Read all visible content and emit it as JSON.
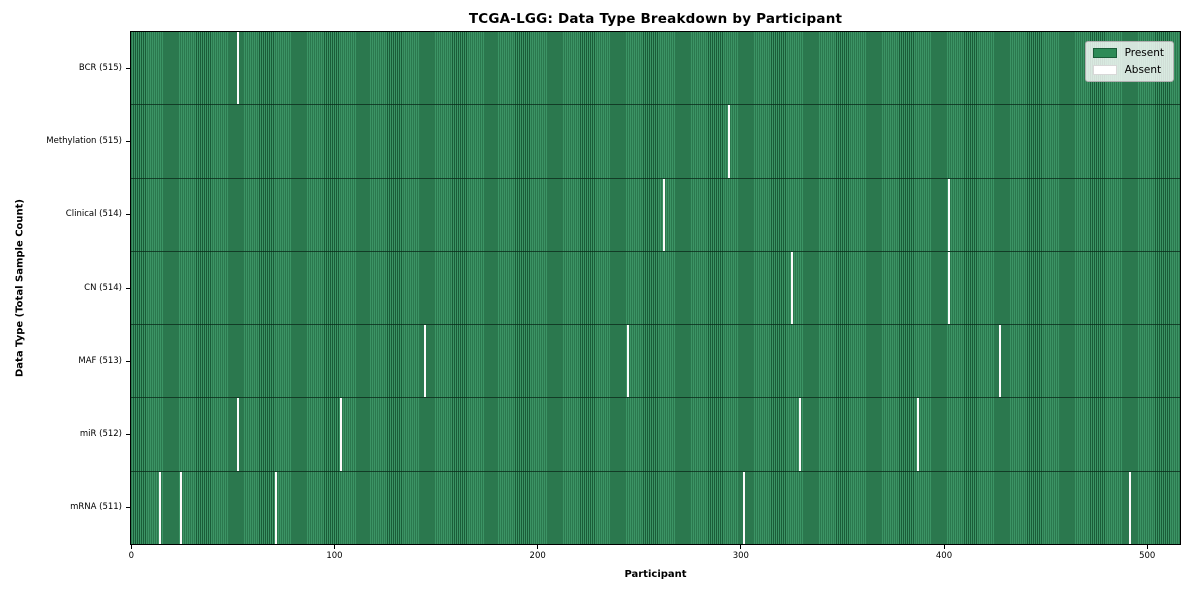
{
  "chart_data": {
    "type": "heatmap",
    "title": "TCGA-LGG: Data Type Breakdown by Participant",
    "xlabel": "Participant",
    "ylabel": "Data Type (Total Sample Count)",
    "x_ticks": [
      0,
      100,
      200,
      300,
      400,
      500
    ],
    "xlim": [
      0,
      516
    ],
    "total_participants": 516,
    "grid": false,
    "legend_position": "upper right",
    "legend_items": [
      {
        "label": "Present",
        "color": "#2e8b57"
      },
      {
        "label": "Absent",
        "color": "#ffffff"
      }
    ],
    "colors": {
      "present_fill": "#3c9465",
      "present_edge": "#1a5c38",
      "absent_fill": "#fbfbfb",
      "legend_present": "#2e8b57",
      "legend_absent": "#ffffff"
    },
    "rows": [
      {
        "id": "bcr",
        "label": "BCR (515)",
        "data_type": "BCR",
        "present_count": 515,
        "absent_count": 1,
        "absent_participants": [
          52
        ]
      },
      {
        "id": "methylation",
        "label": "Methylation (515)",
        "data_type": "Methylation",
        "present_count": 515,
        "absent_count": 1,
        "absent_participants": [
          294
        ]
      },
      {
        "id": "clinical",
        "label": "Clinical (514)",
        "data_type": "Clinical",
        "present_count": 514,
        "absent_count": 2,
        "absent_participants": [
          262,
          402
        ]
      },
      {
        "id": "cn",
        "label": "CN (514)",
        "data_type": "CN",
        "present_count": 514,
        "absent_count": 2,
        "absent_participants": [
          325,
          402
        ]
      },
      {
        "id": "maf",
        "label": "MAF (513)",
        "data_type": "MAF",
        "present_count": 513,
        "absent_count": 3,
        "absent_participants": [
          144,
          244,
          427
        ]
      },
      {
        "id": "mir",
        "label": "miR (512)",
        "data_type": "miR",
        "present_count": 512,
        "absent_count": 4,
        "absent_participants": [
          52,
          103,
          329,
          387
        ]
      },
      {
        "id": "mrna",
        "label": "mRNA (511)",
        "data_type": "mRNA",
        "present_count": 511,
        "absent_count": 5,
        "absent_participants": [
          14,
          24,
          71,
          301,
          491
        ]
      }
    ]
  }
}
